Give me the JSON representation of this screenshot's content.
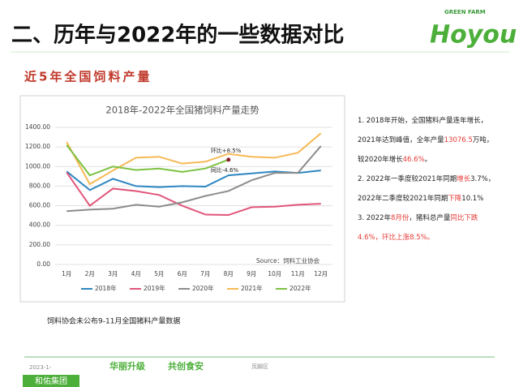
{
  "header": {
    "title": "二、历年与2022年的一些数据对比",
    "section": "近5年全国饲料产量"
  },
  "logo": {
    "small": "GREEN FARM",
    "brand": "Hoyou"
  },
  "chart_data": {
    "type": "line",
    "title": "2018年-2022年全国猪饲料产量走势",
    "categories": [
      "1月",
      "2月",
      "3月",
      "4月",
      "5月",
      "6月",
      "7月",
      "8月",
      "9月",
      "10月",
      "11月",
      "12月"
    ],
    "series": [
      {
        "name": "2018年",
        "color": "#2e86c1",
        "values": [
          950,
          760,
          875,
          800,
          790,
          800,
          795,
          910,
          930,
          950,
          935,
          960
        ]
      },
      {
        "name": "2019年",
        "color": "#e0567a",
        "values": [
          940,
          600,
          775,
          750,
          710,
          600,
          510,
          505,
          585,
          590,
          610,
          620
        ]
      },
      {
        "name": "2020年",
        "color": "#8c8c8c",
        "values": [
          545,
          560,
          570,
          610,
          590,
          635,
          700,
          750,
          860,
          935,
          935,
          1210
        ]
      },
      {
        "name": "2021年",
        "color": "#f7b955",
        "values": [
          1250,
          820,
          960,
          1090,
          1100,
          1030,
          1050,
          1130,
          1100,
          1090,
          1140,
          1340
        ]
      },
      {
        "name": "2022年",
        "color": "#7cc242",
        "values": [
          1220,
          910,
          1000,
          965,
          980,
          945,
          980,
          1070,
          null,
          null,
          null,
          null
        ]
      }
    ],
    "ylim": [
      0,
      1400
    ],
    "yticks": [
      {
        "value": 0,
        "label": "0.00"
      },
      {
        "value": 200,
        "label": "200.00"
      },
      {
        "value": 400,
        "label": "400.00"
      },
      {
        "value": 600,
        "label": "600.00"
      },
      {
        "value": 800,
        "label": "800.00"
      },
      {
        "value": 1000,
        "label": "1000.00"
      },
      {
        "value": 1200,
        "label": "1200.00"
      },
      {
        "value": 1400,
        "label": "1400.00"
      }
    ],
    "grid": true,
    "annotations": [
      "环比+8.5%",
      "同比-4.6%"
    ],
    "source": "Source：饲料工业协会"
  },
  "notes": [
    [
      {
        "text": "1. 2018年开始，全国猪料产量连年增长，"
      }
    ],
    [
      {
        "text": "2021年达到峰值，全年产量"
      },
      {
        "text": "13076.5",
        "highlight": true
      },
      {
        "text": "万吨，"
      }
    ],
    [
      {
        "text": "较2020年增长"
      },
      {
        "text": "46.6%",
        "highlight": true
      },
      {
        "text": "。"
      }
    ],
    [
      {
        "text": "2. 2022年一季度较2021年同期"
      },
      {
        "text": "增长",
        "highlight": true
      },
      {
        "text": "3.7%，"
      }
    ],
    [
      {
        "text": "2022年二季度较2021年同期"
      },
      {
        "text": "下降",
        "highlight": true
      },
      {
        "text": "10.1%"
      }
    ],
    [
      {
        "text": "3. 2022年"
      },
      {
        "text": "8月份",
        "highlight": true
      },
      {
        "text": "，猪料总产量"
      },
      {
        "text": "同比下跌",
        "highlight": true
      }
    ],
    [
      {
        "text": "4.6%，环比上涨8.5%。",
        "highlight": true
      }
    ]
  ],
  "footnote": "饲料协会未公布9-11月全国猪料产量数据",
  "footer": {
    "date": "2023-1-",
    "slogan1": "华丽升级",
    "slogan2": "共创食安",
    "area": "页脚区",
    "company": "和佑集团"
  }
}
